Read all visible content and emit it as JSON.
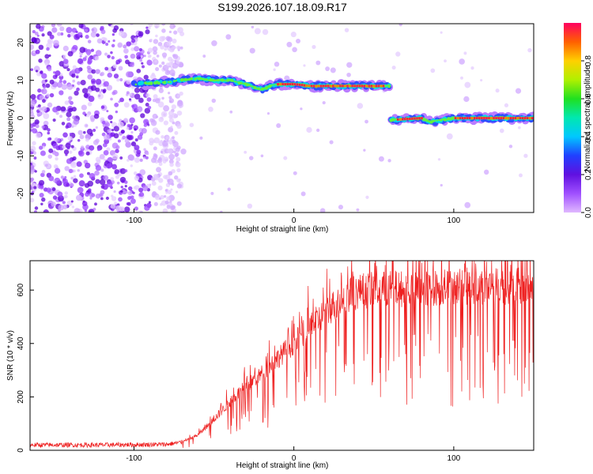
{
  "title": "S199.2026.107.18.09.R17",
  "chart_data": [
    {
      "type": "heatmap",
      "name": "spectrogram",
      "xlabel": "Height of straight line (km)",
      "ylabel": "Frequency (Hz)",
      "xlim": [
        -165,
        150
      ],
      "ylim": [
        -25,
        25
      ],
      "xticks": [
        -100,
        0,
        100
      ],
      "yticks": [
        -20,
        -10,
        0,
        10,
        20
      ],
      "colorbar": {
        "label": "Normalized spectral amplitude",
        "range": [
          0,
          1
        ],
        "ticks": [
          0.0,
          0.2,
          0.4,
          0.6,
          0.8
        ]
      },
      "ridge": [
        {
          "x": -100,
          "f": 9
        },
        {
          "x": -80,
          "f": 9.5
        },
        {
          "x": -60,
          "f": 10.5
        },
        {
          "x": -50,
          "f": 10
        },
        {
          "x": -40,
          "f": 10
        },
        {
          "x": -30,
          "f": 9
        },
        {
          "x": -20,
          "f": 7.5
        },
        {
          "x": -15,
          "f": 8.5
        },
        {
          "x": -10,
          "f": 9
        },
        {
          "x": 0,
          "f": 9
        },
        {
          "x": 10,
          "f": 8.5
        },
        {
          "x": 30,
          "f": 8.5
        },
        {
          "x": 60,
          "f": 8.5
        },
        {
          "x": 60,
          "f": -0.5
        },
        {
          "x": 80,
          "f": 0
        },
        {
          "x": 85,
          "f": -1
        },
        {
          "x": 100,
          "f": 0
        },
        {
          "x": 150,
          "f": 0
        }
      ]
    },
    {
      "type": "line",
      "name": "snr",
      "xlabel": "Height of straight line (km)",
      "ylabel": "SNR (10 * v/v)",
      "xlim": [
        -165,
        150
      ],
      "ylim": [
        0,
        710
      ],
      "xticks": [
        -100,
        0,
        100
      ],
      "yticks": [
        0,
        200,
        400,
        600
      ],
      "color": "#ee2020",
      "series": [
        {
          "name": "SNR envelope",
          "x": [
            -165,
            -120,
            -80,
            -70,
            -60,
            -50,
            -40,
            -30,
            -20,
            -10,
            0,
            10,
            20,
            30,
            40,
            60,
            80,
            100,
            120,
            150
          ],
          "y": [
            20,
            20,
            22,
            30,
            60,
            120,
            190,
            250,
            300,
            360,
            420,
            480,
            540,
            590,
            620,
            630,
            630,
            640,
            640,
            640
          ]
        }
      ]
    }
  ]
}
